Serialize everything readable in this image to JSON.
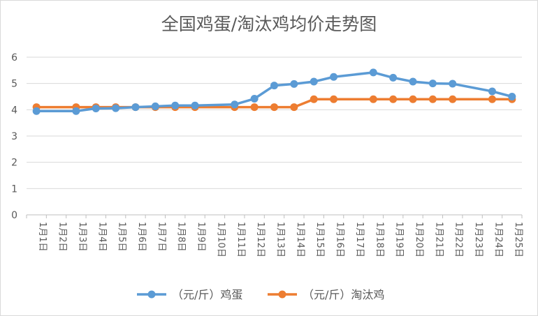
{
  "chart_data": {
    "type": "line",
    "title": "全国鸡蛋/淘汰鸡均价走势图",
    "categories": [
      "1月1日",
      "1月2日",
      "1月3日",
      "1月4日",
      "1月5日",
      "1月6日",
      "1月7日",
      "1月8日",
      "1月9日",
      "1月10日",
      "1月11日",
      "1月12日",
      "1月13日",
      "1月14日",
      "1月15日",
      "1月16日",
      "1月17日",
      "1月18日",
      "1月19日",
      "1月20日",
      "1月21日",
      "1月22日",
      "1月23日",
      "1月24日",
      "1月25日"
    ],
    "series": [
      {
        "name": "（元/斤）鸡蛋",
        "color": "#5b9bd5",
        "values": [
          3.95,
          null,
          3.95,
          4.05,
          4.06,
          4.1,
          4.13,
          4.16,
          4.16,
          null,
          4.2,
          4.42,
          4.92,
          4.98,
          5.07,
          5.25,
          null,
          5.42,
          5.22,
          5.07,
          5.0,
          4.99,
          null,
          4.7,
          4.5
        ]
      },
      {
        "name": "（元/斤）淘汰鸡",
        "color": "#ed7d31",
        "values": [
          4.1,
          null,
          4.1,
          4.1,
          4.1,
          4.1,
          4.1,
          4.1,
          4.1,
          null,
          4.1,
          4.1,
          4.1,
          4.1,
          4.4,
          4.4,
          null,
          4.4,
          4.4,
          4.4,
          4.4,
          4.4,
          null,
          4.4,
          4.4
        ]
      }
    ],
    "yticks": [
      "0",
      "1",
      "2",
      "3",
      "4",
      "5",
      "6"
    ],
    "ylim": [
      0,
      6
    ],
    "grid": true,
    "legend": "bottom"
  }
}
